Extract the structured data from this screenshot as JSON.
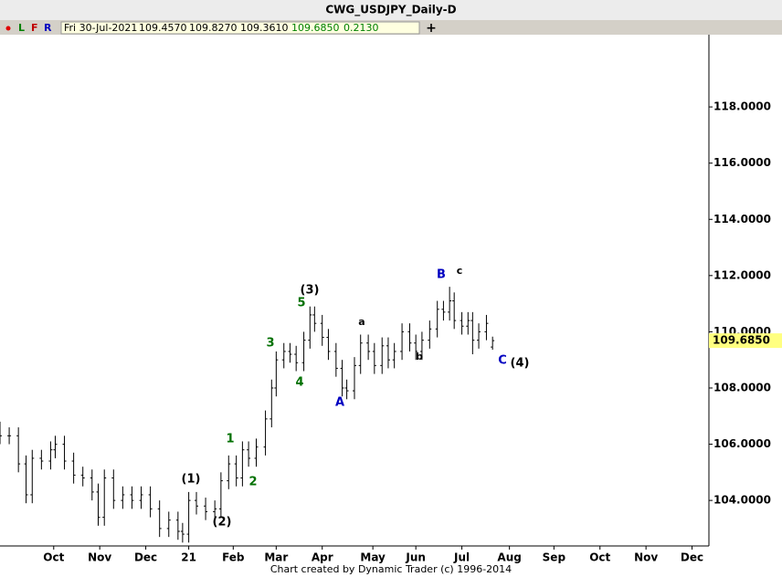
{
  "chart_data": {
    "type": "ohlc",
    "title": "CWG_USDJPY_Daily-D",
    "toolbar": {
      "items": [
        {
          "text": "L",
          "color": "#008000"
        },
        {
          "text": "F",
          "color": "#c00000"
        },
        {
          "text": "R",
          "color": "#0000c0"
        }
      ],
      "info": {
        "date": "Fri 30-Jul-2021",
        "open": "109.4570",
        "high": "109.8270",
        "low": "109.3610",
        "close": "109.6850",
        "change": "0.2130"
      }
    },
    "footer": "Chart created by Dynamic Trader  (c) 1996-2014",
    "x": [
      0,
      6,
      12,
      17,
      21,
      27,
      33,
      36,
      42,
      48,
      54,
      60,
      64,
      68,
      74,
      80,
      86,
      92,
      98,
      104,
      110,
      116,
      119,
      123,
      128,
      134,
      140,
      144,
      149,
      154,
      158,
      162,
      167,
      173,
      177,
      180,
      185,
      189,
      193,
      198,
      202,
      205,
      210,
      214,
      219,
      223,
      226,
      231,
      235,
      240,
      244,
      249,
      253,
      257,
      262,
      267,
      271,
      275,
      280,
      285,
      289,
      293,
      296,
      301,
      305,
      308,
      312,
      317,
      321
    ],
    "open": [
      106.5,
      106.3,
      106.3,
      105.3,
      104.2,
      105.5,
      105.4,
      105.8,
      106.0,
      105.4,
      104.9,
      104.8,
      104.3,
      103.4,
      104.8,
      104.0,
      104.2,
      104.0,
      104.2,
      103.7,
      103.0,
      103.3,
      102.9,
      102.8,
      104.0,
      103.8,
      103.6,
      103.7,
      104.7,
      105.3,
      104.8,
      105.8,
      105.5,
      105.9,
      106.9,
      108.0,
      109.0,
      109.3,
      109.2,
      108.9,
      109.7,
      110.6,
      110.3,
      109.8,
      109.3,
      108.7,
      108.0,
      107.9,
      108.8,
      109.6,
      109.3,
      108.8,
      109.5,
      109.0,
      109.3,
      110.0,
      109.6,
      109.3,
      109.7,
      110.1,
      110.8,
      110.7,
      111.1,
      110.4,
      110.2,
      110.4,
      109.7,
      110.0,
      109.457
    ],
    "high": [
      106.8,
      106.6,
      106.6,
      105.6,
      105.8,
      105.8,
      106.1,
      106.3,
      106.3,
      105.7,
      105.2,
      105.1,
      104.6,
      105.1,
      105.1,
      104.5,
      104.5,
      104.5,
      104.5,
      104.0,
      103.6,
      103.6,
      103.2,
      104.3,
      104.3,
      104.1,
      104.0,
      105.0,
      105.6,
      105.6,
      106.1,
      106.1,
      106.2,
      107.2,
      108.3,
      109.3,
      109.6,
      109.6,
      109.5,
      110.0,
      110.9,
      110.9,
      110.6,
      110.1,
      109.6,
      109.0,
      108.3,
      109.1,
      109.9,
      109.9,
      109.6,
      109.8,
      109.8,
      109.6,
      110.3,
      110.3,
      109.9,
      110.0,
      110.4,
      111.1,
      111.1,
      111.6,
      111.4,
      110.7,
      110.7,
      110.7,
      110.3,
      110.6,
      109.827
    ],
    "low": [
      106.0,
      106.0,
      105.0,
      103.9,
      103.9,
      105.1,
      105.1,
      105.5,
      105.1,
      104.6,
      104.5,
      104.0,
      103.1,
      103.1,
      103.7,
      103.7,
      103.7,
      103.7,
      103.4,
      102.7,
      102.7,
      102.6,
      102.5,
      102.5,
      103.5,
      103.3,
      103.3,
      103.4,
      104.4,
      104.5,
      104.5,
      105.2,
      105.2,
      105.6,
      106.6,
      107.7,
      108.7,
      108.9,
      108.6,
      108.6,
      109.4,
      110.0,
      109.5,
      109.0,
      108.4,
      107.7,
      107.6,
      107.6,
      108.5,
      109.0,
      108.5,
      108.5,
      108.7,
      108.7,
      109.0,
      109.3,
      109.0,
      109.0,
      109.4,
      109.8,
      110.4,
      110.4,
      110.1,
      109.9,
      109.9,
      109.2,
      109.4,
      109.7,
      109.361
    ],
    "close": [
      106.3,
      106.3,
      105.3,
      104.2,
      105.5,
      105.4,
      105.8,
      106.0,
      105.4,
      104.9,
      104.8,
      104.3,
      103.4,
      104.8,
      104.0,
      104.2,
      104.0,
      104.2,
      103.7,
      103.0,
      103.3,
      102.9,
      102.8,
      104.0,
      103.8,
      103.6,
      103.7,
      104.7,
      105.3,
      104.8,
      105.8,
      105.5,
      105.9,
      106.9,
      108.0,
      109.0,
      109.3,
      109.2,
      108.9,
      109.7,
      110.6,
      110.3,
      109.8,
      109.3,
      108.7,
      108.0,
      107.9,
      108.8,
      109.6,
      109.3,
      108.8,
      109.5,
      109.0,
      109.3,
      110.0,
      109.6,
      109.3,
      109.7,
      110.1,
      110.8,
      110.7,
      111.1,
      110.4,
      110.2,
      110.4,
      109.7,
      110.0,
      110.3,
      109.685
    ],
    "color": "#000000",
    "xlim": [
      0,
      462
    ],
    "xticks": [
      {
        "value": 35,
        "label": "Oct"
      },
      {
        "value": 65,
        "label": "Nov"
      },
      {
        "value": 95,
        "label": "Dec"
      },
      {
        "value": 123,
        "label": "21"
      },
      {
        "value": 152,
        "label": "Feb"
      },
      {
        "value": 180,
        "label": "Mar"
      },
      {
        "value": 210,
        "label": "Apr"
      },
      {
        "value": 243,
        "label": "May"
      },
      {
        "value": 271,
        "label": "Jun"
      },
      {
        "value": 301,
        "label": "Jul"
      },
      {
        "value": 332,
        "label": "Aug"
      },
      {
        "value": 361,
        "label": "Sep"
      },
      {
        "value": 391,
        "label": "Oct"
      },
      {
        "value": 421,
        "label": "Nov"
      },
      {
        "value": 451,
        "label": "Dec"
      }
    ],
    "ylim": [
      102.38,
      119.92
    ],
    "yticks": [
      {
        "value": 104,
        "label": "104.0000"
      },
      {
        "value": 106,
        "label": "106.0000"
      },
      {
        "value": 108,
        "label": "108.0000"
      },
      {
        "value": 110,
        "label": "110.0000"
      },
      {
        "value": 112,
        "label": "112.0000"
      },
      {
        "value": 114,
        "label": "114.0000"
      },
      {
        "value": 116,
        "label": "116.0000"
      },
      {
        "value": 118,
        "label": "118.0000"
      }
    ],
    "price_tag": {
      "value": 109.685,
      "label": "109.6850",
      "color": "#ffff80"
    },
    "annotations": [
      {
        "text": "(1)",
        "color": "#000000"
      },
      {
        "text": "(2)",
        "color": "#000000"
      },
      {
        "text": "1",
        "color": "#007000"
      },
      {
        "text": "2",
        "color": "#007000"
      },
      {
        "text": "3",
        "color": "#007000"
      },
      {
        "text": "4",
        "color": "#007000"
      },
      {
        "text": "5",
        "color": "#007000"
      },
      {
        "text": "(3)",
        "color": "#000000"
      },
      {
        "text": "A",
        "color": "#0000c0"
      },
      {
        "text": "a",
        "color": "#000000"
      },
      {
        "text": "b",
        "color": "#000000"
      },
      {
        "text": "B",
        "color": "#0000c0"
      },
      {
        "text": "c",
        "color": "#000000"
      },
      {
        "text": "C",
        "color": "#0000c0"
      },
      {
        "text": "(4)",
        "color": "#000000"
      }
    ]
  }
}
